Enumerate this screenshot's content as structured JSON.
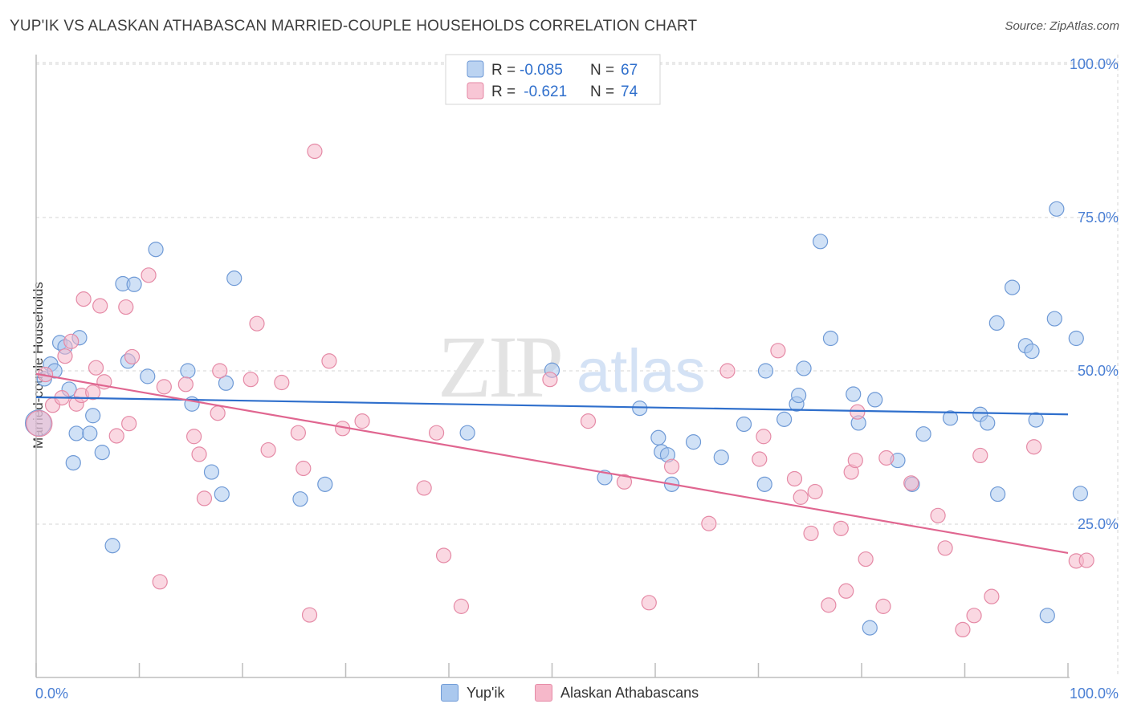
{
  "chart_data": {
    "type": "scatter",
    "title": "YUP'IK VS ALASKAN ATHABASCAN MARRIED-COUPLE HOUSEHOLDS CORRELATION CHART",
    "source": "Source: ZipAtlas.com",
    "ylabel": "Married-couple Households",
    "xlabel": "",
    "xlim": [
      0,
      100
    ],
    "ylim": [
      0,
      105
    ],
    "x_tick_labels": [
      "0.0%",
      "100.0%"
    ],
    "y_tick_labels": [
      "25.0%",
      "50.0%",
      "75.0%",
      "100.0%"
    ],
    "y_ticks": [
      25,
      50,
      75,
      100
    ],
    "x_ticks": [
      0,
      10,
      20,
      30,
      40,
      50,
      60,
      70,
      80,
      90,
      100
    ],
    "watermark": "ZIPatlas",
    "legend": {
      "rows": [
        {
          "r_label": "R =",
          "r_value": "-0.085",
          "n_label": "N =",
          "n_value": "67"
        },
        {
          "r_label": "R =",
          "r_value": " -0.621",
          "n_label": "N =",
          "n_value": "74"
        }
      ]
    },
    "bottom_legend": [
      "Yup'ik",
      "Alaskan Athabascans"
    ],
    "colors": {
      "series1_fill": "#aac8ee",
      "series1_stroke": "#6f9ad6",
      "series1_line": "#2f6fcc",
      "series2_fill": "#f6b8ca",
      "series2_stroke": "#e58aa6",
      "series2_line": "#e06690",
      "tick": "#4a7fd4",
      "grid": "#d6d6d6"
    },
    "series": [
      {
        "name": "Yup'ik",
        "trend": {
          "x1": 0,
          "y1": 45.7,
          "x2": 100,
          "y2": 42.9
        },
        "points": [
          [
            0.8,
            48.7
          ],
          [
            1.4,
            51.1
          ],
          [
            1.8,
            50.0
          ],
          [
            2.3,
            54.6
          ],
          [
            2.8,
            53.9
          ],
          [
            3.2,
            47.0
          ],
          [
            3.6,
            35.0
          ],
          [
            3.9,
            39.8
          ],
          [
            4.2,
            55.4
          ],
          [
            5.2,
            39.8
          ],
          [
            5.5,
            42.7
          ],
          [
            6.4,
            36.7
          ],
          [
            7.4,
            21.5
          ],
          [
            8.4,
            64.2
          ],
          [
            8.9,
            51.6
          ],
          [
            9.5,
            64.1
          ],
          [
            10.8,
            49.1
          ],
          [
            11.6,
            69.8
          ],
          [
            14.7,
            50.0
          ],
          [
            15.1,
            44.6
          ],
          [
            17.0,
            33.5
          ],
          [
            18.0,
            29.9
          ],
          [
            18.4,
            48.0
          ],
          [
            19.2,
            65.1
          ],
          [
            25.6,
            29.1
          ],
          [
            28.0,
            31.5
          ],
          [
            41.8,
            39.9
          ],
          [
            50.0,
            50.1
          ],
          [
            55.1,
            32.6
          ],
          [
            58.5,
            43.9
          ],
          [
            60.3,
            39.1
          ],
          [
            60.6,
            36.8
          ],
          [
            61.2,
            36.3
          ],
          [
            61.6,
            31.5
          ],
          [
            63.7,
            38.4
          ],
          [
            66.4,
            35.9
          ],
          [
            68.6,
            41.3
          ],
          [
            70.6,
            31.5
          ],
          [
            70.7,
            50.0
          ],
          [
            72.5,
            42.1
          ],
          [
            73.7,
            44.6
          ],
          [
            73.9,
            46.0
          ],
          [
            74.4,
            50.4
          ],
          [
            76.0,
            71.1
          ],
          [
            77.0,
            55.3
          ],
          [
            79.2,
            46.2
          ],
          [
            79.7,
            41.5
          ],
          [
            80.8,
            8.1
          ],
          [
            81.3,
            45.3
          ],
          [
            83.5,
            35.4
          ],
          [
            84.9,
            31.5
          ],
          [
            86.0,
            39.7
          ],
          [
            88.6,
            42.3
          ],
          [
            91.5,
            42.9
          ],
          [
            92.2,
            41.5
          ],
          [
            93.1,
            57.8
          ],
          [
            93.2,
            29.9
          ],
          [
            94.6,
            63.6
          ],
          [
            95.9,
            54.1
          ],
          [
            96.5,
            53.2
          ],
          [
            96.9,
            42.0
          ],
          [
            98.0,
            10.1
          ],
          [
            98.7,
            58.5
          ],
          [
            98.9,
            76.4
          ],
          [
            100.8,
            55.3
          ],
          [
            101.2,
            30.0
          ],
          [
            0.2,
            41.5
          ]
        ]
      },
      {
        "name": "Alaskan Athabascans",
        "trend": {
          "x1": 0,
          "y1": 49.5,
          "x2": 100,
          "y2": 20.3
        },
        "points": [
          [
            0.3,
            41.4
          ],
          [
            0.9,
            49.4
          ],
          [
            1.6,
            44.4
          ],
          [
            2.5,
            45.6
          ],
          [
            2.8,
            52.4
          ],
          [
            3.4,
            54.8
          ],
          [
            3.9,
            44.6
          ],
          [
            4.4,
            46.0
          ],
          [
            4.6,
            61.7
          ],
          [
            5.5,
            46.5
          ],
          [
            5.8,
            50.5
          ],
          [
            6.2,
            60.6
          ],
          [
            6.6,
            48.2
          ],
          [
            7.8,
            39.4
          ],
          [
            8.7,
            60.4
          ],
          [
            9.0,
            41.4
          ],
          [
            9.3,
            52.3
          ],
          [
            10.9,
            65.6
          ],
          [
            12.4,
            47.4
          ],
          [
            12.0,
            15.6
          ],
          [
            14.5,
            47.8
          ],
          [
            15.3,
            39.3
          ],
          [
            15.8,
            36.4
          ],
          [
            16.3,
            29.2
          ],
          [
            17.6,
            43.1
          ],
          [
            17.8,
            50.0
          ],
          [
            20.8,
            48.6
          ],
          [
            21.4,
            57.7
          ],
          [
            22.5,
            37.1
          ],
          [
            23.8,
            48.1
          ],
          [
            25.4,
            39.9
          ],
          [
            25.9,
            34.1
          ],
          [
            26.5,
            10.2
          ],
          [
            27.0,
            85.8
          ],
          [
            28.4,
            51.6
          ],
          [
            29.7,
            40.6
          ],
          [
            31.6,
            41.8
          ],
          [
            37.6,
            30.9
          ],
          [
            38.8,
            39.9
          ],
          [
            39.5,
            19.9
          ],
          [
            41.2,
            11.6
          ],
          [
            49.8,
            48.6
          ],
          [
            53.5,
            41.8
          ],
          [
            57.0,
            31.9
          ],
          [
            59.4,
            12.2
          ],
          [
            61.6,
            34.4
          ],
          [
            65.2,
            25.1
          ],
          [
            67.0,
            50.0
          ],
          [
            70.1,
            35.6
          ],
          [
            70.5,
            39.3
          ],
          [
            71.9,
            53.3
          ],
          [
            73.5,
            32.4
          ],
          [
            74.1,
            29.4
          ],
          [
            75.1,
            23.5
          ],
          [
            75.5,
            30.3
          ],
          [
            76.8,
            11.8
          ],
          [
            78.0,
            24.3
          ],
          [
            78.5,
            14.1
          ],
          [
            79.0,
            33.5
          ],
          [
            79.4,
            35.4
          ],
          [
            79.6,
            43.3
          ],
          [
            80.4,
            19.3
          ],
          [
            82.1,
            11.6
          ],
          [
            82.4,
            35.8
          ],
          [
            84.8,
            31.7
          ],
          [
            87.4,
            26.4
          ],
          [
            88.1,
            21.1
          ],
          [
            89.8,
            7.8
          ],
          [
            90.9,
            10.1
          ],
          [
            91.5,
            36.2
          ],
          [
            92.6,
            13.2
          ],
          [
            96.7,
            37.6
          ],
          [
            100.8,
            19.0
          ],
          [
            101.8,
            19.1
          ]
        ]
      }
    ]
  }
}
